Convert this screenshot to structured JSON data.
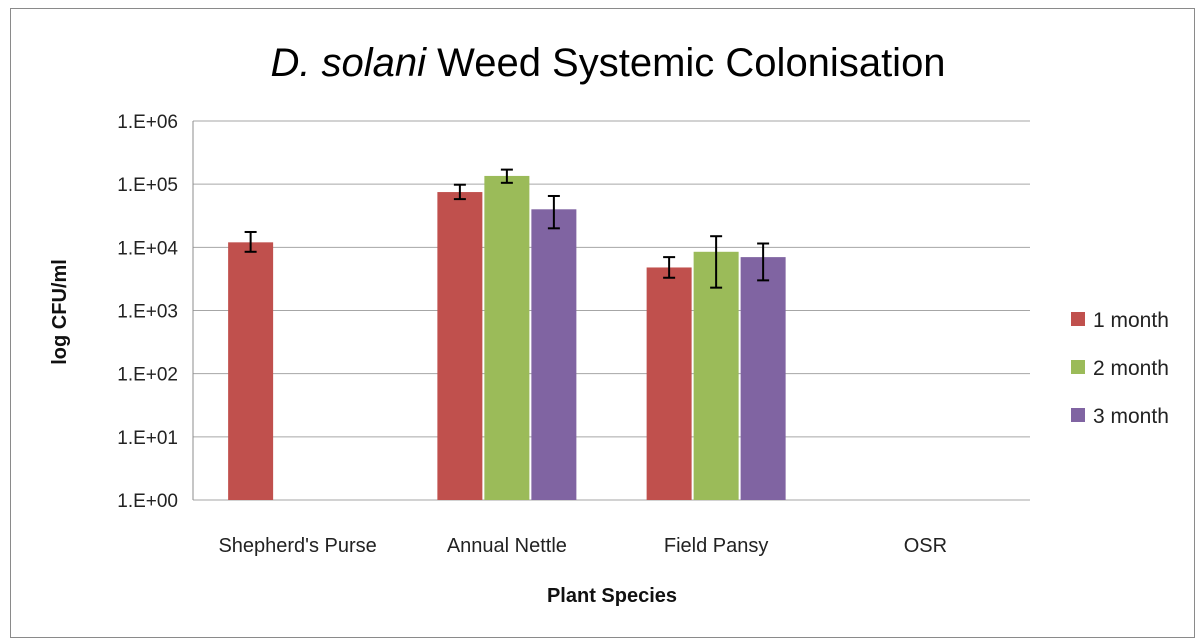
{
  "chart_data": {
    "type": "bar",
    "title_italic": "D. solani",
    "title_rest": " Weed Systemic Colonisation",
    "xlabel": "Plant Species",
    "ylabel": "log CFU/ml",
    "yscale": "log",
    "ylim": [
      1,
      1000000
    ],
    "yticks": [
      {
        "value": 1,
        "label": "1.E+00"
      },
      {
        "value": 10,
        "label": "1.E+01"
      },
      {
        "value": 100,
        "label": "1.E+02"
      },
      {
        "value": 1000,
        "label": "1.E+03"
      },
      {
        "value": 10000,
        "label": "1.E+04"
      },
      {
        "value": 100000,
        "label": "1.E+05"
      },
      {
        "value": 1000000,
        "label": "1.E+06"
      }
    ],
    "grid": true,
    "legend_position": "right",
    "categories": [
      "Shepherd's Purse",
      "Annual Nettle",
      "Field Pansy",
      "OSR"
    ],
    "series": [
      {
        "name": "1 month",
        "color": "#c0504d",
        "values": [
          12000,
          75000,
          4800,
          null
        ],
        "error_low": [
          8500,
          58000,
          3300,
          null
        ],
        "error_high": [
          17500,
          98000,
          7000,
          null
        ]
      },
      {
        "name": "2 month",
        "color": "#9bbb59",
        "values": [
          null,
          135000,
          8500,
          null
        ],
        "error_low": [
          null,
          105000,
          2300,
          null
        ],
        "error_high": [
          null,
          170000,
          15000,
          null
        ]
      },
      {
        "name": "3 month",
        "color": "#8064a2",
        "values": [
          null,
          40000,
          7000,
          null
        ],
        "error_low": [
          null,
          20000,
          3000,
          null
        ],
        "error_high": [
          null,
          65000,
          11500,
          null
        ]
      }
    ]
  }
}
